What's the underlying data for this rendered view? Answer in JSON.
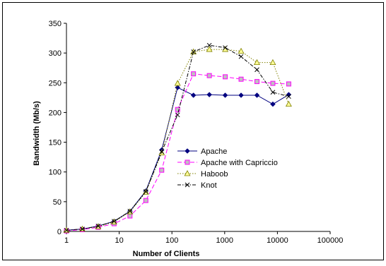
{
  "chart_data": {
    "type": "line",
    "title": "",
    "xlabel": "Number of Clients",
    "ylabel": "Bandwidth (Mb/s)",
    "x_scale": "log",
    "xlim": [
      1,
      100000
    ],
    "ylim": [
      0,
      350
    ],
    "x_ticks": [
      "1",
      "10",
      "100",
      "1000",
      "10000",
      "100000"
    ],
    "y_ticks": [
      "0",
      "50",
      "100",
      "150",
      "200",
      "250",
      "300",
      "350"
    ],
    "grid": false,
    "legend_position": "center-right",
    "series": [
      {
        "name": "Apache",
        "color": "#000080",
        "marker": "diamond",
        "dash": "solid",
        "points": [
          [
            1,
            2
          ],
          [
            2,
            4
          ],
          [
            4,
            9
          ],
          [
            8,
            17
          ],
          [
            16,
            34
          ],
          [
            32,
            68
          ],
          [
            64,
            137
          ],
          [
            128,
            242
          ],
          [
            256,
            229
          ],
          [
            512,
            230
          ],
          [
            1024,
            229
          ],
          [
            2048,
            229
          ],
          [
            4096,
            229
          ],
          [
            8192,
            214
          ],
          [
            16384,
            230
          ]
        ]
      },
      {
        "name": "Apache with Capriccio",
        "color": "#ff00ff",
        "marker": "square",
        "dash": "dashed",
        "points": [
          [
            1,
            1
          ],
          [
            2,
            3
          ],
          [
            4,
            7
          ],
          [
            8,
            13
          ],
          [
            16,
            26
          ],
          [
            32,
            52
          ],
          [
            64,
            103
          ],
          [
            128,
            205
          ],
          [
            256,
            265
          ],
          [
            512,
            262
          ],
          [
            1024,
            260
          ],
          [
            2048,
            256
          ],
          [
            4096,
            252
          ],
          [
            8192,
            249
          ],
          [
            16384,
            248
          ]
        ]
      },
      {
        "name": "Haboob",
        "color": "#808000",
        "marker": "triangle",
        "dash": "dotted",
        "points": [
          [
            1,
            2
          ],
          [
            2,
            4
          ],
          [
            4,
            8
          ],
          [
            8,
            16
          ],
          [
            16,
            33
          ],
          [
            32,
            66
          ],
          [
            64,
            132
          ],
          [
            128,
            249
          ],
          [
            256,
            302
          ],
          [
            512,
            306
          ],
          [
            1024,
            306
          ],
          [
            2048,
            303
          ],
          [
            4096,
            284
          ],
          [
            8192,
            284
          ],
          [
            16384,
            214
          ]
        ]
      },
      {
        "name": "Knot",
        "color": "#000000",
        "marker": "x",
        "dash": "dashdot",
        "points": [
          [
            1,
            2
          ],
          [
            2,
            4
          ],
          [
            4,
            9
          ],
          [
            8,
            17
          ],
          [
            16,
            34
          ],
          [
            32,
            67
          ],
          [
            64,
            134
          ],
          [
            128,
            196
          ],
          [
            256,
            302
          ],
          [
            512,
            313
          ],
          [
            1024,
            309
          ],
          [
            2048,
            294
          ],
          [
            4096,
            272
          ],
          [
            8192,
            234
          ],
          [
            16384,
            227
          ]
        ]
      }
    ]
  }
}
